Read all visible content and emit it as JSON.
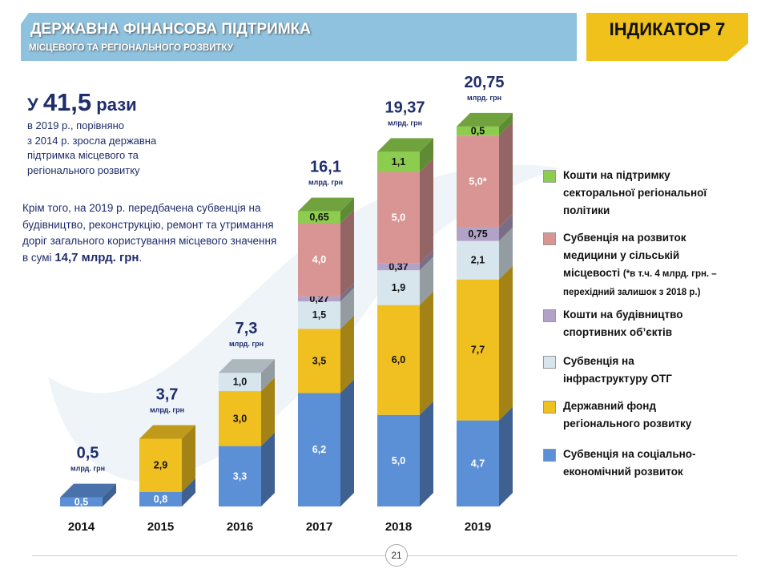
{
  "header": {
    "title": "ДЕРЖАВНА ФІНАНСОВА  ПІДТРИМКА",
    "subtitle": "МІСЦЕВОГО ТА РЕГІОНАЛЬНОГО РОЗВИТКУ",
    "indicator": "ІНДИКАТОР 7"
  },
  "summary": {
    "prefix": "У",
    "number": "41,5",
    "suffix": "рази",
    "lines": [
      "в 2019 р., порівняно",
      "з 2014 р. зросла державна",
      "підтримка місцевого та",
      "регіонального розвитку"
    ]
  },
  "extra": {
    "text": "Крім того, на 2019 р. передбачена субвенція на будівництво, реконструкцію, ремонт та утримання доріг  загального користування місцевого значення в сумі ",
    "amount": "14,7 млрд. грн",
    "end": "."
  },
  "page_number": "21",
  "chart_data": {
    "type": "bar",
    "stacked": true,
    "three_d": true,
    "categories": [
      "2014",
      "2015",
      "2016",
      "2017",
      "2018",
      "2019"
    ],
    "totals": [
      "0,5",
      "3,7",
      "7,3",
      "16,1",
      "19,37",
      "20,75"
    ],
    "total_unit": "млрд. грн",
    "series": [
      {
        "name": "Субвенція на соціально-економічний розвиток",
        "color": "#5b8fd6",
        "values": [
          0.5,
          0.8,
          3.3,
          6.2,
          5.0,
          4.7
        ],
        "labels": [
          "0,5",
          "0,8",
          "3,3",
          "6,2",
          "5,0",
          "4,7"
        ]
      },
      {
        "name": "Державний фонд регіонального розвитку",
        "color": "#f0c020",
        "values": [
          0,
          2.9,
          3.0,
          3.5,
          6.0,
          7.7
        ],
        "labels": [
          "",
          "2,9",
          "3,0",
          "3,5",
          "6,0",
          "7,7"
        ]
      },
      {
        "name": "Субвенція на інфраструктуру ОТГ",
        "color": "#d7e5ed",
        "values": [
          0,
          0,
          1.0,
          1.5,
          1.9,
          2.1
        ],
        "labels": [
          "",
          "",
          "1,0",
          "1,5",
          "1,9",
          "2,1"
        ]
      },
      {
        "name": "Кошти на будівництво спортивних об’єктів",
        "color": "#b3a2c7",
        "values": [
          0,
          0,
          0,
          0.27,
          0.37,
          0.75
        ],
        "labels": [
          "",
          "",
          "",
          "0,27",
          "0,37",
          "0,75"
        ]
      },
      {
        "name": "Субвенція на розвиток медицини у сільській місцевості",
        "color": "#d99594",
        "values": [
          0,
          0,
          0,
          4.0,
          5.0,
          5.0
        ],
        "labels": [
          "",
          "",
          "",
          "4,0",
          "5,0",
          "5,0*"
        ]
      },
      {
        "name": "Кошти на підтримку секторальної регіональної політики",
        "color": "#8ccc4e",
        "values": [
          0,
          0,
          0,
          0.65,
          1.1,
          0.5
        ],
        "labels": [
          "",
          "",
          "",
          "0,65",
          "1,1",
          "0,5"
        ]
      }
    ],
    "legend": {
      "position": "right",
      "note": "(*в т.ч. 4 млрд. грн. – перехідний залишок з 2018  р.)",
      "items": [
        {
          "line1": "Кошти на підтримку",
          "line2": "секторальної  регіональної",
          "line3": "політики",
          "color": "#8ccc4e"
        },
        {
          "line1": "Субвенція на розвиток",
          "line2": "медицини у сільській",
          "line3": "місцевості",
          "color": "#d99594"
        },
        {
          "line1": "Кошти на будівництво",
          "line2": "спортивних  об’єктів",
          "color": "#b3a2c7"
        },
        {
          "line1": "Субвенція на",
          "line2": "інфраструктуру  ОТГ",
          "color": "#d7e5ed"
        },
        {
          "line1": "Державний  фонд",
          "line2": "регіонального  розвитку",
          "color": "#f0c020"
        },
        {
          "line1": "Субвенція на соціально-",
          "line2": "економічний  розвиток",
          "color": "#5b8fd6"
        }
      ]
    }
  }
}
